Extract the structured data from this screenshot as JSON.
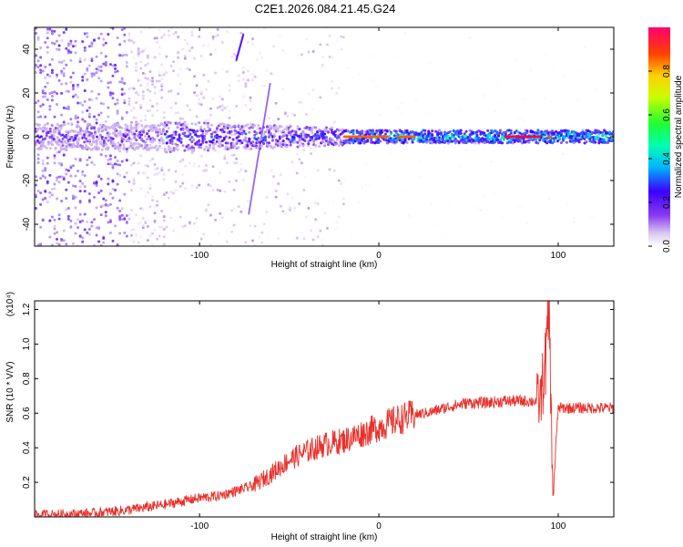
{
  "title": "C2E1.2026.084.21.45.G24",
  "colorbar": {
    "label": "Normalized spectral amplitude",
    "ticks": [
      "0.0",
      "0.2",
      "0.4",
      "0.6",
      "0.8"
    ],
    "tick_values": [
      0.0,
      0.2,
      0.4,
      0.6,
      0.8
    ],
    "range": [
      0,
      1
    ]
  },
  "chart_data": [
    {
      "type": "heatmap",
      "xlabel": "Height of straight line (km)",
      "ylabel": "Frequency (Hz)",
      "xlim": [
        -192,
        131
      ],
      "ylim": [
        -50,
        50
      ],
      "xticks": [
        -100,
        0,
        100
      ],
      "xtick_labels": [
        "-100",
        "0",
        "100"
      ],
      "yticks": [
        -40,
        -20,
        0,
        20,
        40
      ],
      "ytick_labels": [
        "-40",
        "-20",
        "0",
        "20",
        "40"
      ],
      "description_bands": [
        {
          "x": [
            -192,
            -120
          ],
          "freq_spread": 50,
          "amplitude": 0.15
        },
        {
          "x": [
            -120,
            -20
          ],
          "freq_spread": 8,
          "amplitude": 0.35
        },
        {
          "x": [
            -20,
            131
          ],
          "freq_spread": 3,
          "amplitude": 0.55
        }
      ]
    },
    {
      "type": "line",
      "xlabel": "Height of straight line (km)",
      "ylabel": "SNR (10 * V/V)",
      "yscale_label": "(x10⁴)",
      "xlim": [
        -192,
        131
      ],
      "ylim": [
        0,
        1.25
      ],
      "xticks": [
        -100,
        0,
        100
      ],
      "xtick_labels": [
        "-100",
        "0",
        "100"
      ],
      "yticks": [
        0.2,
        0.4,
        0.6,
        0.8,
        1.0,
        1.2
      ],
      "ytick_labels": [
        "0.2",
        "0.4",
        "0.6",
        "0.8",
        "1.0",
        "1.2"
      ],
      "color": "#e8302a",
      "series": [
        {
          "name": "SNR",
          "x": [
            -192,
            -160,
            -140,
            -120,
            -100,
            -90,
            -80,
            -70,
            -60,
            -50,
            -40,
            -30,
            -20,
            -10,
            0,
            10,
            20,
            30,
            40,
            50,
            60,
            70,
            80,
            90,
            93,
            95,
            97,
            100,
            110,
            120,
            131
          ],
          "y": [
            0.01,
            0.02,
            0.04,
            0.07,
            0.11,
            0.12,
            0.15,
            0.18,
            0.25,
            0.33,
            0.38,
            0.42,
            0.44,
            0.48,
            0.52,
            0.56,
            0.59,
            0.61,
            0.64,
            0.66,
            0.66,
            0.67,
            0.67,
            0.67,
            0.9,
            1.2,
            0.1,
            0.63,
            0.63,
            0.63,
            0.63
          ]
        }
      ]
    }
  ]
}
